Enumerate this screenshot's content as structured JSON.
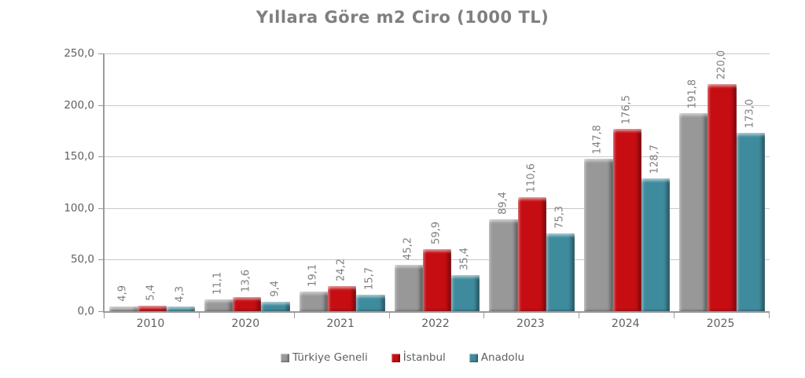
{
  "chart_data": {
    "type": "bar",
    "title": "Yıllara Göre m2 Ciro (1000 TL)",
    "categories": [
      "2010",
      "2020",
      "2021",
      "2022",
      "2023",
      "2024",
      "2025"
    ],
    "series": [
      {
        "name": "Türkiye Geneli",
        "color": "#989898",
        "values": [
          4.9,
          11.1,
          19.1,
          45.2,
          89.4,
          147.8,
          191.8
        ]
      },
      {
        "name": "İstanbul",
        "color": "#c50d12",
        "values": [
          5.4,
          13.6,
          24.2,
          59.9,
          110.6,
          176.5,
          220.0
        ]
      },
      {
        "name": "Anadolu",
        "color": "#3e8b9d",
        "values": [
          4.3,
          9.4,
          15.7,
          35.4,
          75.3,
          128.7,
          173.0
        ]
      }
    ],
    "data_label_format": "one_decimal_comma",
    "decimal_separator": ",",
    "xlabel": "",
    "ylabel": "",
    "ylim": [
      0,
      250
    ],
    "y_tick_step": 50,
    "y_tick_labels": [
      "0,0",
      "50,0",
      "100,0",
      "150,0",
      "200,0",
      "250,0"
    ],
    "grid": true,
    "legend_position": "bottom"
  }
}
